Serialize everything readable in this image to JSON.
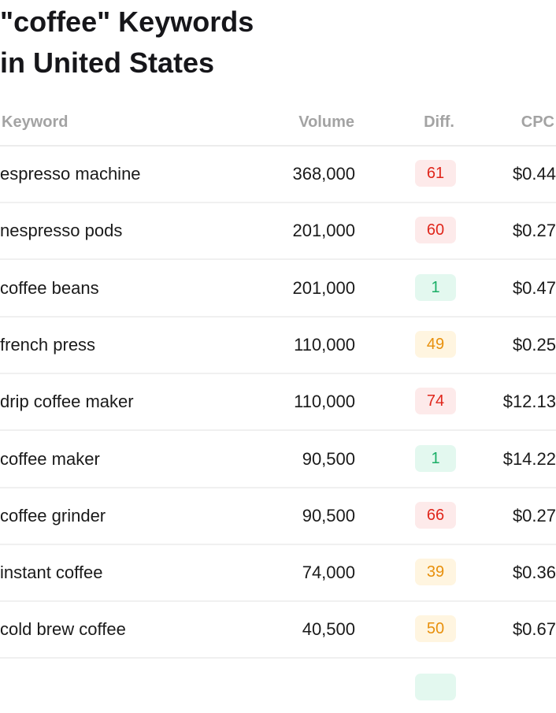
{
  "title_line1": "\"coffee\" Keywords",
  "title_line2": "in United States",
  "columns": {
    "keyword": "Keyword",
    "volume": "Volume",
    "diff": "Diff.",
    "cpc": "CPC"
  },
  "colors": {
    "red": "#e0261b",
    "orange": "#e8900c",
    "green": "#1aae66"
  },
  "rows": [
    {
      "keyword": "espresso machine",
      "volume": "368,000",
      "diff": "61",
      "level": "red",
      "cpc": "$0.44"
    },
    {
      "keyword": "nespresso pods",
      "volume": "201,000",
      "diff": "60",
      "level": "red",
      "cpc": "$0.27"
    },
    {
      "keyword": "coffee beans",
      "volume": "201,000",
      "diff": "1",
      "level": "green",
      "cpc": "$0.47"
    },
    {
      "keyword": "french press",
      "volume": "110,000",
      "diff": "49",
      "level": "orange",
      "cpc": "$0.25"
    },
    {
      "keyword": "drip coffee maker",
      "volume": "110,000",
      "diff": "74",
      "level": "red",
      "cpc": "$12.13"
    },
    {
      "keyword": "coffee maker",
      "volume": "90,500",
      "diff": "1",
      "level": "green",
      "cpc": "$14.22"
    },
    {
      "keyword": "coffee grinder",
      "volume": "90,500",
      "diff": "66",
      "level": "red",
      "cpc": "$0.27"
    },
    {
      "keyword": "instant coffee",
      "volume": "74,000",
      "diff": "39",
      "level": "orange",
      "cpc": "$0.36"
    },
    {
      "keyword": "cold brew coffee",
      "volume": "40,500",
      "diff": "50",
      "level": "orange",
      "cpc": "$0.67"
    }
  ]
}
